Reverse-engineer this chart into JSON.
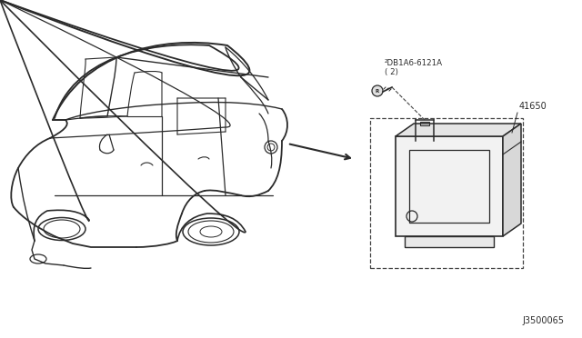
{
  "bg_color": "#ffffff",
  "line_color": "#2a2a2a",
  "dashed_color": "#444444",
  "part_label_41650": "41650",
  "part_label_bolt": "²DB1A6-6121A\n( 2)",
  "diagram_code": "J3500065",
  "fig_width": 6.4,
  "fig_height": 3.72,
  "dpi": 100
}
